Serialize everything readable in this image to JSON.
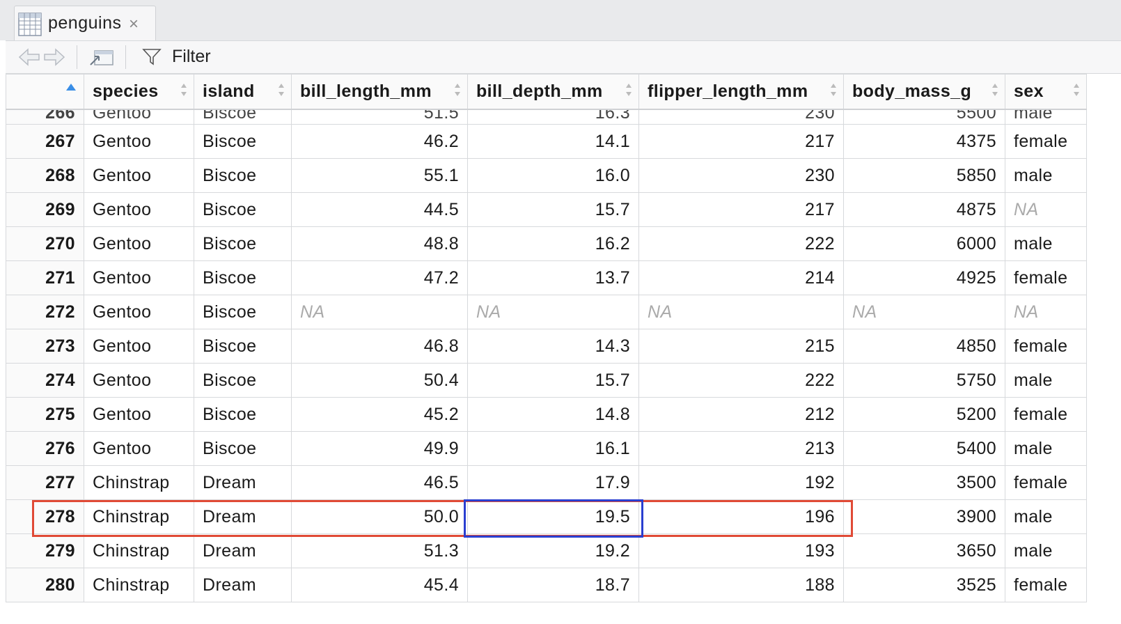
{
  "tab": {
    "title": "penguins",
    "close": "×"
  },
  "toolbar": {
    "filter_label": "Filter"
  },
  "columns": [
    "",
    "species",
    "island",
    "bill_length_mm",
    "bill_depth_mm",
    "flipper_length_mm",
    "body_mass_g",
    "sex"
  ],
  "partial_row": [
    "266",
    "Gentoo",
    "Biscoe",
    "51.5",
    "16.3",
    "230",
    "5500",
    "male"
  ],
  "rows": [
    [
      "267",
      "Gentoo",
      "Biscoe",
      "46.2",
      "14.1",
      "217",
      "4375",
      "female"
    ],
    [
      "268",
      "Gentoo",
      "Biscoe",
      "55.1",
      "16.0",
      "230",
      "5850",
      "male"
    ],
    [
      "269",
      "Gentoo",
      "Biscoe",
      "44.5",
      "15.7",
      "217",
      "4875",
      "NA"
    ],
    [
      "270",
      "Gentoo",
      "Biscoe",
      "48.8",
      "16.2",
      "222",
      "6000",
      "male"
    ],
    [
      "271",
      "Gentoo",
      "Biscoe",
      "47.2",
      "13.7",
      "214",
      "4925",
      "female"
    ],
    [
      "272",
      "Gentoo",
      "Biscoe",
      "NA",
      "NA",
      "NA",
      "NA",
      "NA"
    ],
    [
      "273",
      "Gentoo",
      "Biscoe",
      "46.8",
      "14.3",
      "215",
      "4850",
      "female"
    ],
    [
      "274",
      "Gentoo",
      "Biscoe",
      "50.4",
      "15.7",
      "222",
      "5750",
      "male"
    ],
    [
      "275",
      "Gentoo",
      "Biscoe",
      "45.2",
      "14.8",
      "212",
      "5200",
      "female"
    ],
    [
      "276",
      "Gentoo",
      "Biscoe",
      "49.9",
      "16.1",
      "213",
      "5400",
      "male"
    ],
    [
      "277",
      "Chinstrap",
      "Dream",
      "46.5",
      "17.9",
      "192",
      "3500",
      "female"
    ],
    [
      "278",
      "Chinstrap",
      "Dream",
      "50.0",
      "19.5",
      "196",
      "3900",
      "male"
    ],
    [
      "279",
      "Chinstrap",
      "Dream",
      "51.3",
      "19.2",
      "193",
      "3650",
      "male"
    ],
    [
      "280",
      "Chinstrap",
      "Dream",
      "45.4",
      "18.7",
      "188",
      "3525",
      "female"
    ]
  ],
  "colors": {
    "row_highlight": "#e04a36",
    "cell_highlight": "#2a3fd0",
    "sort_active": "#3a8ee6"
  }
}
